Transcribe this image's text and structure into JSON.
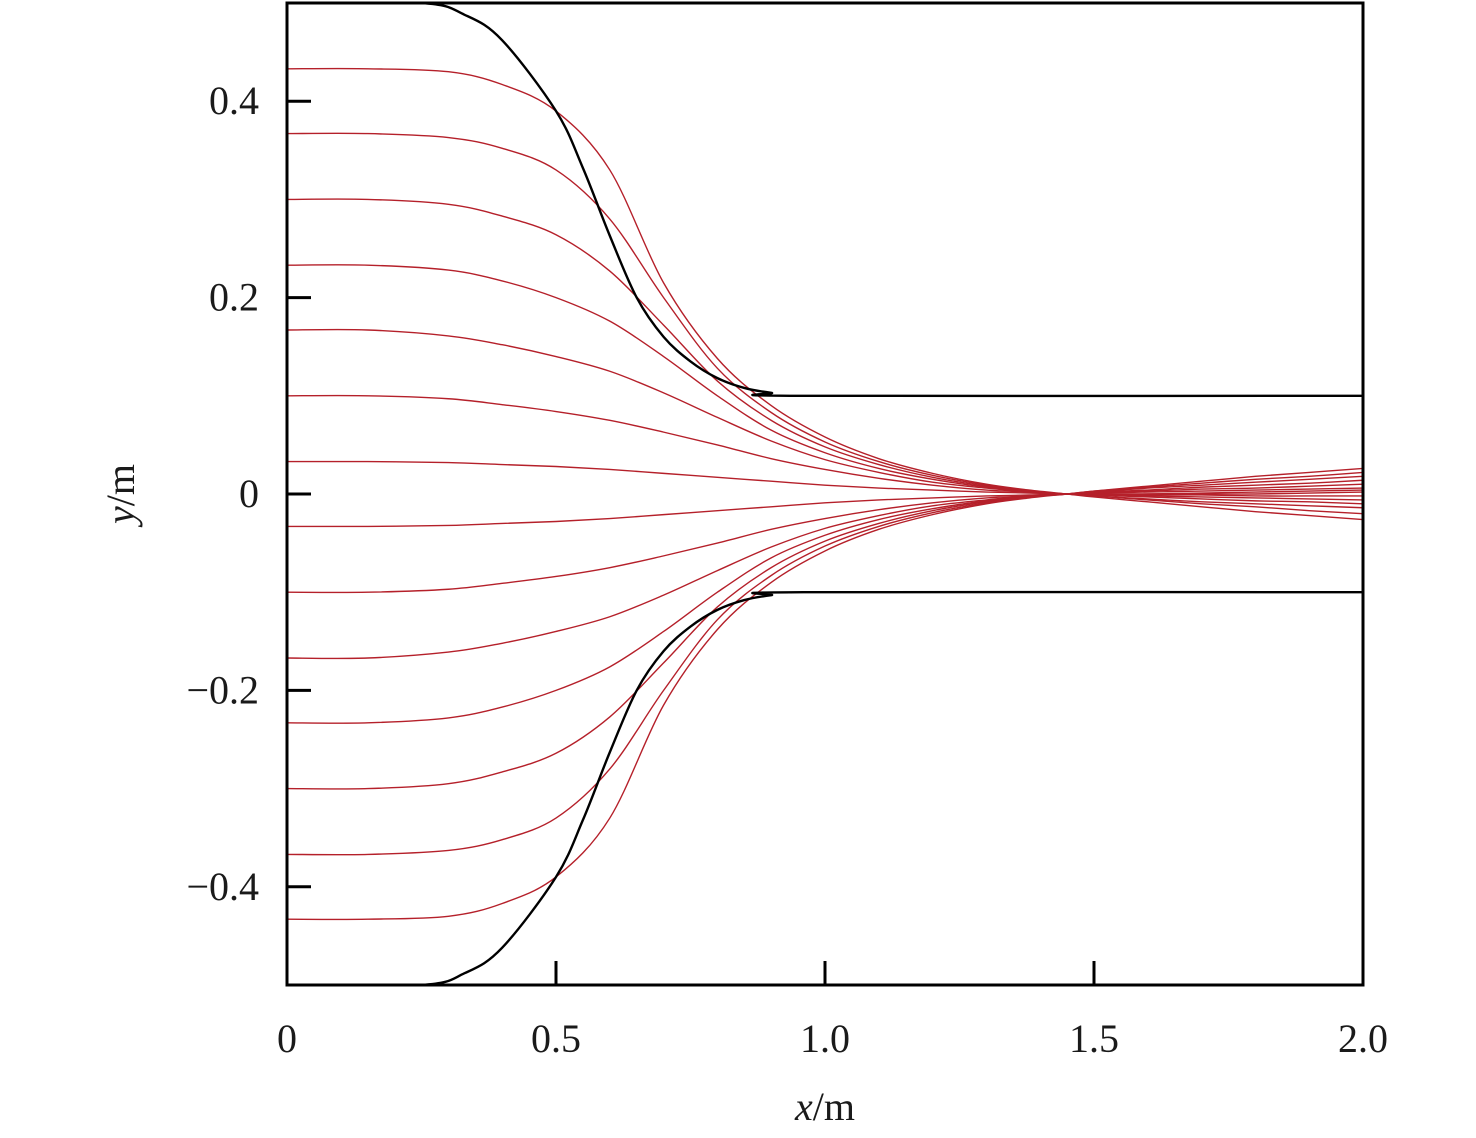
{
  "chart_data": {
    "type": "line",
    "title": "",
    "xlabel": {
      "var": "x",
      "unit": "/m"
    },
    "ylabel": {
      "var": "y",
      "unit": "/m"
    },
    "xlim": [
      0,
      2.0
    ],
    "ylim": [
      -0.5,
      0.5
    ],
    "grid": false,
    "x_ticks": [
      {
        "value": 0,
        "label": "0"
      },
      {
        "value": 0.5,
        "label": "0.5"
      },
      {
        "value": 1.0,
        "label": "1.0"
      },
      {
        "value": 1.5,
        "label": "1.5"
      },
      {
        "value": 2.0,
        "label": "2.0"
      }
    ],
    "y_ticks": [
      {
        "value": -0.4,
        "label": "−0.4"
      },
      {
        "value": -0.2,
        "label": "−0.2"
      },
      {
        "value": 0,
        "label": "0"
      },
      {
        "value": 0.2,
        "label": "0.2"
      },
      {
        "value": 0.4,
        "label": "0.4"
      }
    ],
    "walls": {
      "color": "#000000",
      "series": [
        {
          "x": [
            0.0,
            0.25,
            0.33,
            0.4,
            0.5,
            0.55,
            0.6,
            0.65,
            0.7,
            0.75,
            0.8,
            0.85,
            0.9,
            0.96,
            2.0
          ],
          "y": [
            0.5,
            0.5,
            0.488,
            0.462,
            0.39,
            0.332,
            0.263,
            0.2,
            0.16,
            0.135,
            0.118,
            0.108,
            0.103,
            0.1,
            0.1
          ]
        },
        {
          "x": [
            0.0,
            0.25,
            0.33,
            0.4,
            0.5,
            0.55,
            0.6,
            0.65,
            0.7,
            0.75,
            0.8,
            0.85,
            0.9,
            0.96,
            2.0
          ],
          "y": [
            -0.5,
            -0.5,
            -0.488,
            -0.462,
            -0.39,
            -0.332,
            -0.263,
            -0.2,
            -0.16,
            -0.135,
            -0.118,
            -0.108,
            -0.103,
            -0.1,
            -0.1
          ]
        }
      ]
    },
    "streamlines": {
      "color": "#b5202a",
      "x": [
        0.0,
        0.15,
        0.3,
        0.4,
        0.5,
        0.6,
        0.7,
        0.8,
        0.9,
        1.0,
        1.1,
        1.2,
        1.3,
        1.38,
        1.45,
        1.5,
        1.6,
        1.7,
        1.8,
        1.9,
        2.0
      ],
      "series": [
        {
          "y": [
            0.433,
            0.433,
            0.43,
            0.417,
            0.39,
            0.33,
            0.215,
            0.138,
            0.09,
            0.058,
            0.036,
            0.021,
            0.01,
            0.004,
            0.0,
            -0.003,
            -0.008,
            -0.013,
            -0.018,
            -0.022,
            -0.026
          ]
        },
        {
          "y": [
            0.367,
            0.367,
            0.363,
            0.352,
            0.33,
            0.28,
            0.2,
            0.128,
            0.083,
            0.053,
            0.033,
            0.019,
            0.009,
            0.003,
            0.0,
            -0.002,
            -0.006,
            -0.01,
            -0.013,
            -0.017,
            -0.02
          ]
        },
        {
          "y": [
            0.3,
            0.3,
            0.295,
            0.283,
            0.264,
            0.227,
            0.172,
            0.115,
            0.075,
            0.048,
            0.03,
            0.017,
            0.008,
            0.003,
            0.0,
            -0.002,
            -0.005,
            -0.008,
            -0.01,
            -0.012,
            -0.014
          ]
        },
        {
          "y": [
            0.233,
            0.233,
            0.228,
            0.217,
            0.2,
            0.176,
            0.14,
            0.1,
            0.065,
            0.042,
            0.026,
            0.015,
            0.007,
            0.003,
            0.0,
            -0.001,
            -0.003,
            -0.005,
            -0.007,
            -0.008,
            -0.01
          ]
        },
        {
          "y": [
            0.167,
            0.167,
            0.161,
            0.152,
            0.14,
            0.125,
            0.103,
            0.078,
            0.054,
            0.035,
            0.022,
            0.012,
            0.006,
            0.002,
            0.0,
            -0.001,
            -0.002,
            -0.003,
            -0.004,
            -0.005,
            -0.006
          ]
        },
        {
          "y": [
            0.1,
            0.1,
            0.097,
            0.091,
            0.084,
            0.075,
            0.063,
            0.05,
            0.036,
            0.025,
            0.016,
            0.009,
            0.004,
            0.002,
            0.0,
            0.0,
            -0.001,
            -0.001,
            -0.002,
            -0.002,
            -0.002
          ]
        },
        {
          "y": [
            0.033,
            0.033,
            0.032,
            0.03,
            0.028,
            0.025,
            0.021,
            0.017,
            0.013,
            0.009,
            0.006,
            0.004,
            0.002,
            0.001,
            0.0,
            0.0,
            0.0,
            0.0,
            0.0,
            0.001,
            0.002
          ]
        },
        {
          "y": [
            -0.033,
            -0.033,
            -0.032,
            -0.03,
            -0.028,
            -0.025,
            -0.021,
            -0.017,
            -0.013,
            -0.009,
            -0.006,
            -0.004,
            -0.002,
            -0.001,
            0.0,
            0.0,
            0.0,
            0.001,
            0.002,
            0.003,
            0.004
          ]
        },
        {
          "y": [
            -0.1,
            -0.1,
            -0.097,
            -0.091,
            -0.084,
            -0.075,
            -0.063,
            -0.05,
            -0.036,
            -0.025,
            -0.016,
            -0.009,
            -0.004,
            -0.002,
            0.0,
            0.001,
            0.002,
            0.003,
            0.004,
            0.005,
            0.006
          ]
        },
        {
          "y": [
            -0.167,
            -0.167,
            -0.161,
            -0.152,
            -0.14,
            -0.125,
            -0.103,
            -0.078,
            -0.054,
            -0.035,
            -0.022,
            -0.012,
            -0.006,
            -0.002,
            0.0,
            0.001,
            0.003,
            0.005,
            0.006,
            0.008,
            0.01
          ]
        },
        {
          "y": [
            -0.233,
            -0.233,
            -0.228,
            -0.217,
            -0.2,
            -0.176,
            -0.14,
            -0.1,
            -0.065,
            -0.042,
            -0.026,
            -0.015,
            -0.007,
            -0.003,
            0.0,
            0.002,
            0.004,
            0.007,
            0.009,
            0.011,
            0.014
          ]
        },
        {
          "y": [
            -0.3,
            -0.3,
            -0.295,
            -0.283,
            -0.264,
            -0.227,
            -0.172,
            -0.115,
            -0.075,
            -0.048,
            -0.03,
            -0.017,
            -0.008,
            -0.003,
            0.0,
            0.002,
            0.006,
            0.009,
            0.012,
            0.015,
            0.018
          ]
        },
        {
          "y": [
            -0.367,
            -0.367,
            -0.363,
            -0.352,
            -0.33,
            -0.28,
            -0.2,
            -0.128,
            -0.083,
            -0.053,
            -0.033,
            -0.019,
            -0.009,
            -0.003,
            0.0,
            0.003,
            0.007,
            0.011,
            0.015,
            0.018,
            0.022
          ]
        },
        {
          "y": [
            -0.433,
            -0.433,
            -0.43,
            -0.417,
            -0.39,
            -0.33,
            -0.215,
            -0.138,
            -0.09,
            -0.058,
            -0.036,
            -0.021,
            -0.01,
            -0.004,
            0.0,
            0.003,
            0.008,
            0.013,
            0.018,
            0.022,
            0.026
          ]
        }
      ]
    }
  }
}
